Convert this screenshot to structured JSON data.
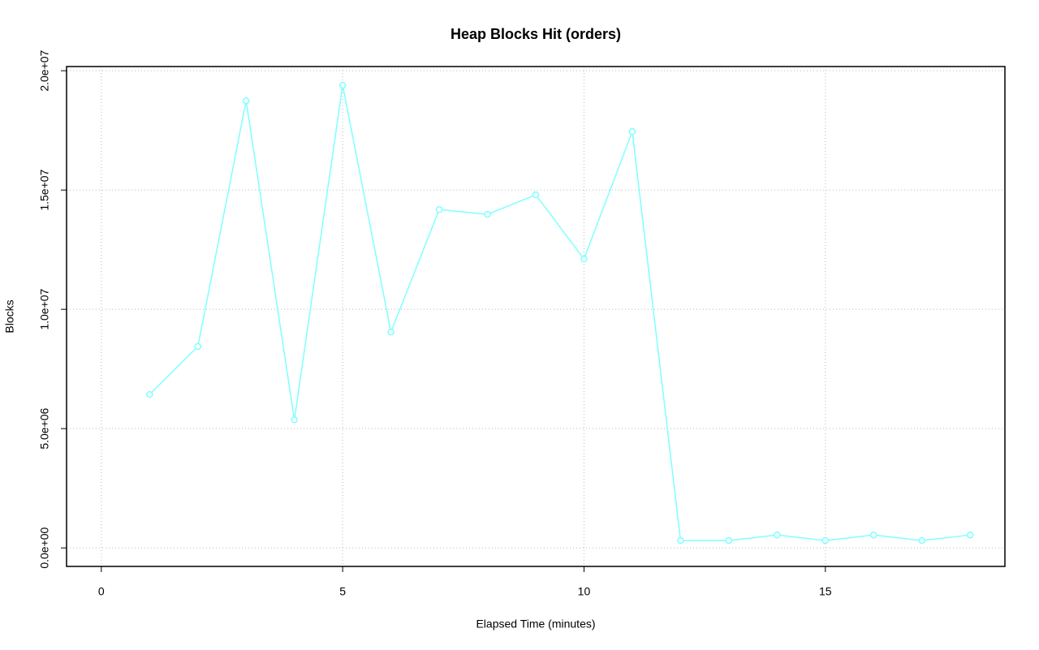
{
  "chart_data": {
    "type": "line",
    "title": "Heap Blocks Hit (orders)",
    "x_label": "Elapsed Time (minutes)",
    "y_label": "Blocks",
    "x": [
      1,
      2,
      3,
      4,
      5,
      6,
      7,
      8,
      9,
      10,
      11,
      12,
      13,
      14,
      15,
      16,
      17,
      18
    ],
    "series": [
      {
        "name": "orders",
        "color": "#80ffff",
        "values": [
          6430000,
          8440000,
          18740000,
          5370000,
          19390000,
          9050000,
          14180000,
          13980000,
          14800000,
          12110000,
          17450000,
          310000,
          310000,
          540000,
          310000,
          540000,
          310000,
          540000
        ]
      }
    ],
    "xlim": [
      -0.72,
      18.72
    ],
    "xticks": [
      0,
      5,
      10,
      15
    ],
    "ylim": [
      -776000,
      20176000
    ],
    "yticks": [
      {
        "value": 0,
        "label": "0.0e+00"
      },
      {
        "value": 5000000,
        "label": "5.0e+06"
      },
      {
        "value": 10000000,
        "label": "1.0e+07"
      },
      {
        "value": 15000000,
        "label": "1.5e+07"
      },
      {
        "value": 20000000,
        "label": "2.0e+07"
      }
    ],
    "grid": true
  }
}
